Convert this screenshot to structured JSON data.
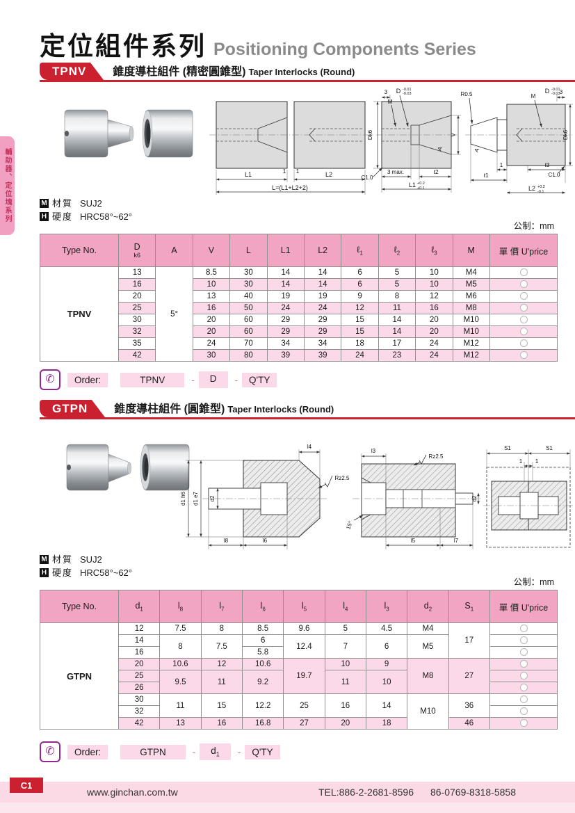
{
  "page": {
    "title_zh": "定位組件系列",
    "title_en": "Positioning Components Series",
    "metric_note": "公制：mm",
    "sidebar_tab": "輔助器、定位塊系列",
    "material_icon": "M",
    "hardness_icon": "H",
    "footer": {
      "page_code": "C1",
      "website": "www.ginchan.com.tw",
      "tel1": "TEL:886-2-2681-8596",
      "tel2": "86-0769-8318-5858"
    }
  },
  "tpnv": {
    "badge": "TPNV",
    "title_zh": "錐度導柱組件 (精密圓錐型)",
    "title_en": "Taper Interlocks (Round)",
    "material_label": "材質",
    "material": "SUJ2",
    "hardness_label": "硬度",
    "hardness": "HRC58°~62°",
    "order_label": "Order:",
    "order": {
      "code": "TPNV",
      "sep": "-",
      "param": "D",
      "param_sub": "",
      "qty": "Q'TY"
    },
    "drawing": {
      "l1": "L1",
      "l2": "L2",
      "one": "1",
      "ltotal": "L=(L1+L2+2)",
      "dk6": "Dk6",
      "three": "3",
      "d": "D",
      "dsup": "-0.01",
      "dsub": "-0.03",
      "m": "M",
      "v": "V",
      "a": "A",
      "c10": "C1.0",
      "max3": "3 max.",
      "el2": "ℓ2",
      "l1t": "L1",
      "l1sup": "+0.2",
      "l1sub": "+0.1",
      "r05": "R0.5",
      "el1": "ℓ1",
      "el3": "ℓ3",
      "l2t": "L2",
      "l2sup": "+0.2",
      "l2sub": "-0.1"
    }
  },
  "tpnv_table": {
    "headers": [
      {
        "m": "Type No."
      },
      {
        "m": "D",
        "stack": "k6"
      },
      {
        "m": "A"
      },
      {
        "m": "V"
      },
      {
        "m": "L"
      },
      {
        "m": "L1"
      },
      {
        "m": "L2"
      },
      {
        "m": "ℓ",
        "sub": "1"
      },
      {
        "m": "ℓ",
        "sub": "2"
      },
      {
        "m": "ℓ",
        "sub": "3"
      },
      {
        "m": "M"
      },
      {
        "m": "單 價 U'price"
      }
    ],
    "rows": [
      {
        "band": "w",
        "cells": [
          {
            "t": "TPNV",
            "rs": 8,
            "cls": "typecell"
          },
          {
            "t": "13"
          },
          {
            "t": "5°",
            "rs": 8,
            "cls": "wcell"
          },
          {
            "t": "8.5"
          },
          {
            "t": "30"
          },
          {
            "t": "14"
          },
          {
            "t": "14"
          },
          {
            "t": "6"
          },
          {
            "t": "5"
          },
          {
            "t": "10"
          },
          {
            "t": "M4"
          },
          {
            "circle": true
          }
        ]
      },
      {
        "band": "p",
        "cells": [
          {
            "t": "16"
          },
          {
            "t": "10"
          },
          {
            "t": "30"
          },
          {
            "t": "14"
          },
          {
            "t": "14"
          },
          {
            "t": "6"
          },
          {
            "t": "5"
          },
          {
            "t": "10"
          },
          {
            "t": "M5"
          },
          {
            "circle": true
          }
        ]
      },
      {
        "band": "w",
        "cells": [
          {
            "t": "20"
          },
          {
            "t": "13"
          },
          {
            "t": "40"
          },
          {
            "t": "19"
          },
          {
            "t": "19"
          },
          {
            "t": "9"
          },
          {
            "t": "8"
          },
          {
            "t": "12"
          },
          {
            "t": "M6"
          },
          {
            "circle": true
          }
        ]
      },
      {
        "band": "p",
        "cells": [
          {
            "t": "25"
          },
          {
            "t": "16"
          },
          {
            "t": "50"
          },
          {
            "t": "24"
          },
          {
            "t": "24"
          },
          {
            "t": "12"
          },
          {
            "t": "11"
          },
          {
            "t": "16"
          },
          {
            "t": "M8"
          },
          {
            "circle": true
          }
        ]
      },
      {
        "band": "w",
        "cells": [
          {
            "t": "30"
          },
          {
            "t": "20"
          },
          {
            "t": "60"
          },
          {
            "t": "29"
          },
          {
            "t": "29"
          },
          {
            "t": "15"
          },
          {
            "t": "14"
          },
          {
            "t": "20"
          },
          {
            "t": "M10"
          },
          {
            "circle": true
          }
        ]
      },
      {
        "band": "p",
        "cells": [
          {
            "t": "32"
          },
          {
            "t": "20"
          },
          {
            "t": "60"
          },
          {
            "t": "29"
          },
          {
            "t": "29"
          },
          {
            "t": "15"
          },
          {
            "t": "14"
          },
          {
            "t": "20"
          },
          {
            "t": "M10"
          },
          {
            "circle": true
          }
        ]
      },
      {
        "band": "w",
        "cells": [
          {
            "t": "35"
          },
          {
            "t": "24"
          },
          {
            "t": "70"
          },
          {
            "t": "34"
          },
          {
            "t": "34"
          },
          {
            "t": "18"
          },
          {
            "t": "17"
          },
          {
            "t": "24"
          },
          {
            "t": "M12"
          },
          {
            "circle": true
          }
        ]
      },
      {
        "band": "p",
        "cells": [
          {
            "t": "42"
          },
          {
            "t": "30"
          },
          {
            "t": "80"
          },
          {
            "t": "39"
          },
          {
            "t": "39"
          },
          {
            "t": "24"
          },
          {
            "t": "23"
          },
          {
            "t": "24"
          },
          {
            "t": "M12"
          },
          {
            "circle": true
          }
        ]
      }
    ]
  },
  "gtpn": {
    "badge": "GTPN",
    "title_zh": "錐度導柱組件 (圓錐型)",
    "title_en": "Taper Interlocks (Round)",
    "material_label": "材質",
    "material": "SUJ2",
    "hardness_label": "硬度",
    "hardness": "HRC58°~62°",
    "order_label": "Order:",
    "order": {
      "code": "GTPN",
      "sep": "-",
      "param": "d",
      "param_sub": "1",
      "qty": "Q'TY"
    },
    "drawing": {
      "d1h6": "d1 h6",
      "d1e7": "d1 e7",
      "d2": "d2",
      "l8": "l8",
      "l7": "l7",
      "l6": "l6",
      "l5": "l5",
      "l4": "l4",
      "l3": "l3",
      "rz": "Rz2.5",
      "deg15": "15°",
      "s1": "S1",
      "one": "1"
    }
  },
  "gtpn_table": {
    "headers": [
      {
        "m": "Type No."
      },
      {
        "m": "d",
        "sub": "1"
      },
      {
        "m": "l",
        "sub": "8"
      },
      {
        "m": "l",
        "sub": "7"
      },
      {
        "m": "l",
        "sub": "6"
      },
      {
        "m": "l",
        "sub": "5"
      },
      {
        "m": "l",
        "sub": "4"
      },
      {
        "m": "l",
        "sub": "3"
      },
      {
        "m": "d",
        "sub": "2"
      },
      {
        "m": "S",
        "sub": "1"
      },
      {
        "m": "單 價 U'price"
      }
    ],
    "rows": [
      {
        "band": "w",
        "cells": [
          {
            "t": "GTPN",
            "rs": 9,
            "cls": "typecell"
          },
          {
            "t": "12"
          },
          {
            "t": "7.5"
          },
          {
            "t": "8"
          },
          {
            "t": "8.5"
          },
          {
            "t": "9.6"
          },
          {
            "t": "5"
          },
          {
            "t": "4.5"
          },
          {
            "t": "M4"
          },
          {
            "t": "17",
            "rs": 3
          },
          {
            "circle": true,
            "cls": "wcell"
          }
        ]
      },
      {
        "band": "w",
        "cells": [
          {
            "t": "14"
          },
          {
            "t": "8",
            "rs": 2
          },
          {
            "t": "7.5",
            "rs": 2
          },
          {
            "t": "6"
          },
          {
            "t": "12.4",
            "rs": 2
          },
          {
            "t": "7",
            "rs": 2
          },
          {
            "t": "6",
            "rs": 2
          },
          {
            "t": "M5",
            "rs": 2
          },
          {
            "circle": true,
            "cls": "wcell"
          }
        ]
      },
      {
        "band": "w",
        "cells": [
          {
            "t": "16"
          },
          {
            "t": "5.8"
          },
          {
            "circle": true,
            "cls": "wcell"
          }
        ]
      },
      {
        "band": "p",
        "cells": [
          {
            "t": "20"
          },
          {
            "t": "10.6"
          },
          {
            "t": "12"
          },
          {
            "t": "10.6"
          },
          {
            "t": "19.7",
            "rs": 3
          },
          {
            "t": "10"
          },
          {
            "t": "9"
          },
          {
            "t": "M8",
            "rs": 3
          },
          {
            "t": "27",
            "rs": 3
          },
          {
            "circle": true,
            "cls": "wcell"
          }
        ]
      },
      {
        "band": "p",
        "cells": [
          {
            "t": "25"
          },
          {
            "t": "9.5",
            "rs": 2
          },
          {
            "t": "11",
            "rs": 2
          },
          {
            "t": "9.2",
            "rs": 2
          },
          {
            "t": "11",
            "rs": 2
          },
          {
            "t": "10",
            "rs": 2
          },
          {
            "circle": true,
            "cls": "wcell"
          }
        ]
      },
      {
        "band": "p",
        "cells": [
          {
            "t": "26"
          },
          {
            "circle": true,
            "cls": "wcell"
          }
        ]
      },
      {
        "band": "w",
        "cells": [
          {
            "t": "30"
          },
          {
            "t": "11",
            "rs": 2
          },
          {
            "t": "15",
            "rs": 2
          },
          {
            "t": "12.2",
            "rs": 2
          },
          {
            "t": "25",
            "rs": 2
          },
          {
            "t": "16",
            "rs": 2
          },
          {
            "t": "14",
            "rs": 2
          },
          {
            "t": "M10",
            "rs": 3
          },
          {
            "t": "36",
            "rs": 2
          },
          {
            "circle": true,
            "cls": "wcell"
          }
        ]
      },
      {
        "band": "w",
        "cells": [
          {
            "t": "32"
          },
          {
            "circle": true,
            "cls": "wcell"
          }
        ]
      },
      {
        "band": "p",
        "cells": [
          {
            "t": "42"
          },
          {
            "t": "13"
          },
          {
            "t": "16"
          },
          {
            "t": "16.8"
          },
          {
            "t": "27"
          },
          {
            "t": "20"
          },
          {
            "t": "18"
          },
          {
            "t": "46"
          },
          {
            "circle": true,
            "cls": "wcell"
          }
        ]
      }
    ]
  }
}
